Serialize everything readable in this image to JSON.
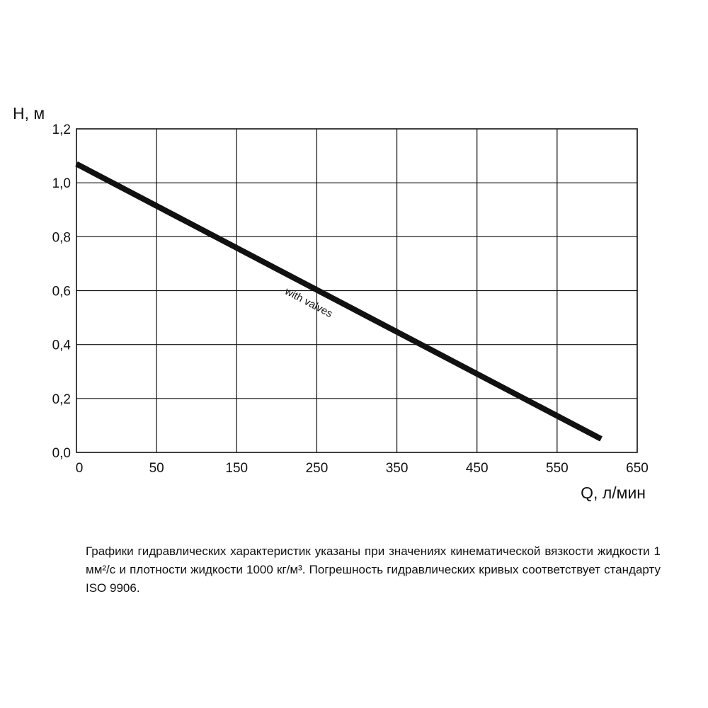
{
  "chart_data": {
    "type": "line",
    "title": "",
    "xlabel": "Q, л/мин",
    "ylabel": "H, м",
    "x_ticks": [
      "0",
      "50",
      "150",
      "250",
      "350",
      "450",
      "550",
      "650"
    ],
    "y_ticks": [
      "0,0",
      "0,2",
      "0,4",
      "0,6",
      "0,8",
      "1,0",
      "1,2"
    ],
    "y_tick_values": [
      0,
      0.2,
      0.4,
      0.6,
      0.8,
      1.0,
      1.2
    ],
    "ylim": [
      0,
      1.2
    ],
    "grid": true,
    "series": [
      {
        "name": "with valves",
        "color": "#111111",
        "points": [
          {
            "x_index": 0,
            "y": 1.07
          },
          {
            "x_index": 6.55,
            "y": 0.05
          }
        ]
      }
    ],
    "annotations": [
      {
        "text": "with valves",
        "x_index": 2.88,
        "y": 0.545
      }
    ]
  },
  "note": "Графики гидравлических характеристик указаны при значениях кинематической вязкости жидкости 1 мм²/с и плотности жидкости 1000 кг/м³. Погрешность гидравлических кривых соответствует стандарту ISO 9906."
}
